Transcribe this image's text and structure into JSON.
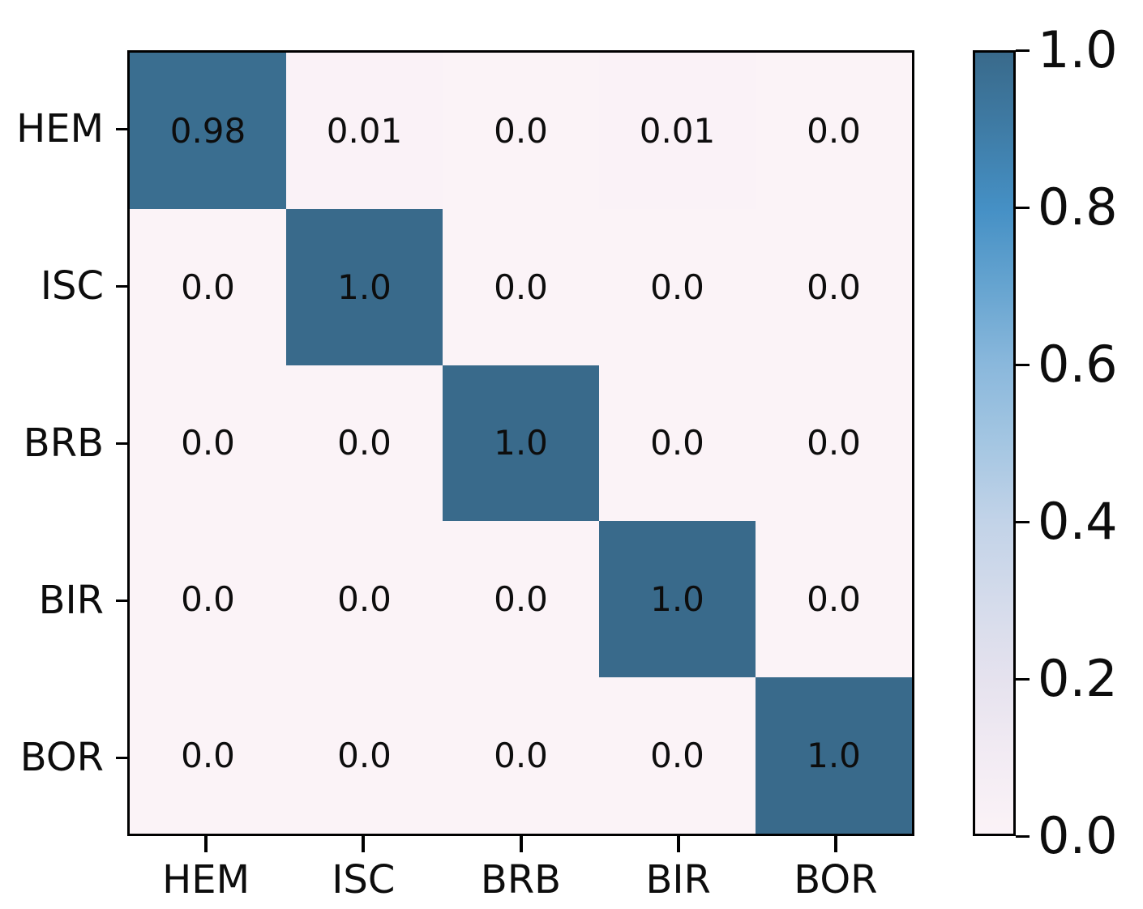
{
  "chart_data": {
    "type": "heatmap",
    "title": "",
    "xlabel": "",
    "ylabel": "",
    "x_axis_categories": [
      "HEM",
      "ISC",
      "BRB",
      "BIR",
      "BOR"
    ],
    "y_axis_categories": [
      "HEM",
      "ISC",
      "BRB",
      "BIR",
      "BOR"
    ],
    "matrix": [
      [
        0.98,
        0.01,
        0.0,
        0.01,
        0.0
      ],
      [
        0.0,
        1.0,
        0.0,
        0.0,
        0.0
      ],
      [
        0.0,
        0.0,
        1.0,
        0.0,
        0.0
      ],
      [
        0.0,
        0.0,
        0.0,
        1.0,
        0.0
      ],
      [
        0.0,
        0.0,
        0.0,
        0.0,
        1.0
      ]
    ],
    "cell_labels": [
      [
        "0.98",
        "0.01",
        "0.0",
        "0.01",
        "0.0"
      ],
      [
        "0.0",
        "1.0",
        "0.0",
        "0.0",
        "0.0"
      ],
      [
        "0.0",
        "0.0",
        "1.0",
        "0.0",
        "0.0"
      ],
      [
        "0.0",
        "0.0",
        "0.0",
        "1.0",
        "0.0"
      ],
      [
        "0.0",
        "0.0",
        "0.0",
        "0.0",
        "1.0"
      ]
    ],
    "colorbar": {
      "position": "right",
      "min": 0.0,
      "max": 1.0,
      "tick_values": [
        1.0,
        0.8,
        0.6,
        0.4,
        0.2,
        0.0
      ],
      "tick_labels": [
        "1.0",
        "0.8",
        "0.6",
        "0.4",
        "0.2",
        "0.0"
      ]
    },
    "colormap_stops": [
      {
        "value": 0.0,
        "color": "#fbf3f7"
      },
      {
        "value": 0.1,
        "color": "#f2ebf3"
      },
      {
        "value": 0.2,
        "color": "#e5e2ee"
      },
      {
        "value": 0.3,
        "color": "#d4dbeb"
      },
      {
        "value": 0.4,
        "color": "#c2d3e8"
      },
      {
        "value": 0.5,
        "color": "#a4c6e2"
      },
      {
        "value": 0.6,
        "color": "#8ab8dc"
      },
      {
        "value": 0.7,
        "color": "#66a4d0"
      },
      {
        "value": 0.8,
        "color": "#4590c5"
      },
      {
        "value": 0.9,
        "color": "#3f7ca6"
      },
      {
        "value": 1.0,
        "color": "#396a8b"
      }
    ],
    "grid": false,
    "legend": false
  },
  "colors": {
    "background": "#ffffff",
    "spine": "#000000",
    "tick": "#000000",
    "value_text": "#0d0d0d",
    "diagonal_cell": "#396a8b",
    "zero_cell": "#fbf3f7"
  }
}
